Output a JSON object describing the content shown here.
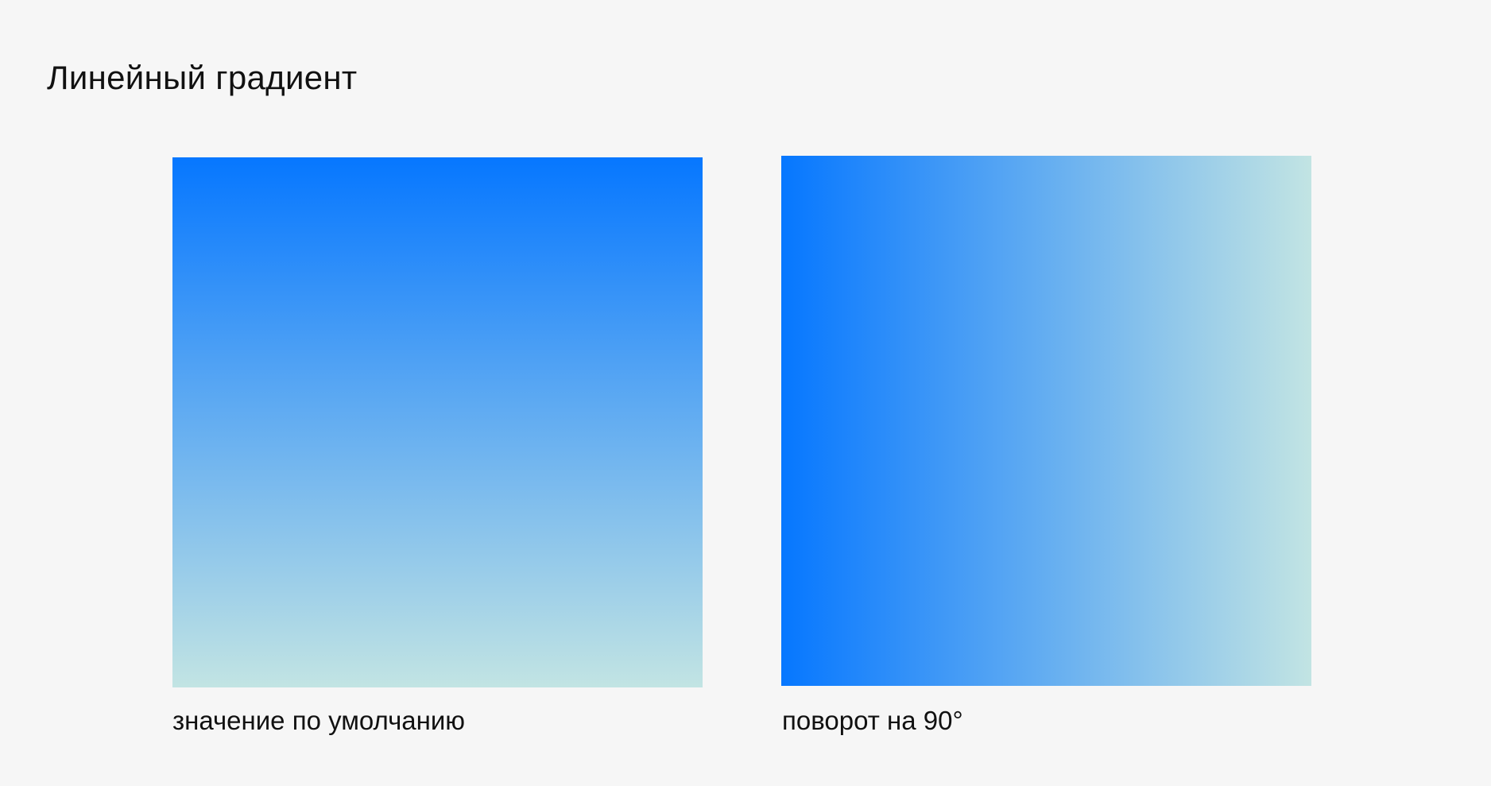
{
  "title": "Линейный градиент",
  "colors": {
    "background": "#f6f6f6",
    "gradient_start": "#0677ff",
    "gradient_end": "#c2e4e3"
  },
  "examples": [
    {
      "caption": "значение по умолчанию",
      "direction": "to bottom"
    },
    {
      "caption": "поворот на 90°",
      "direction": "90deg"
    }
  ]
}
